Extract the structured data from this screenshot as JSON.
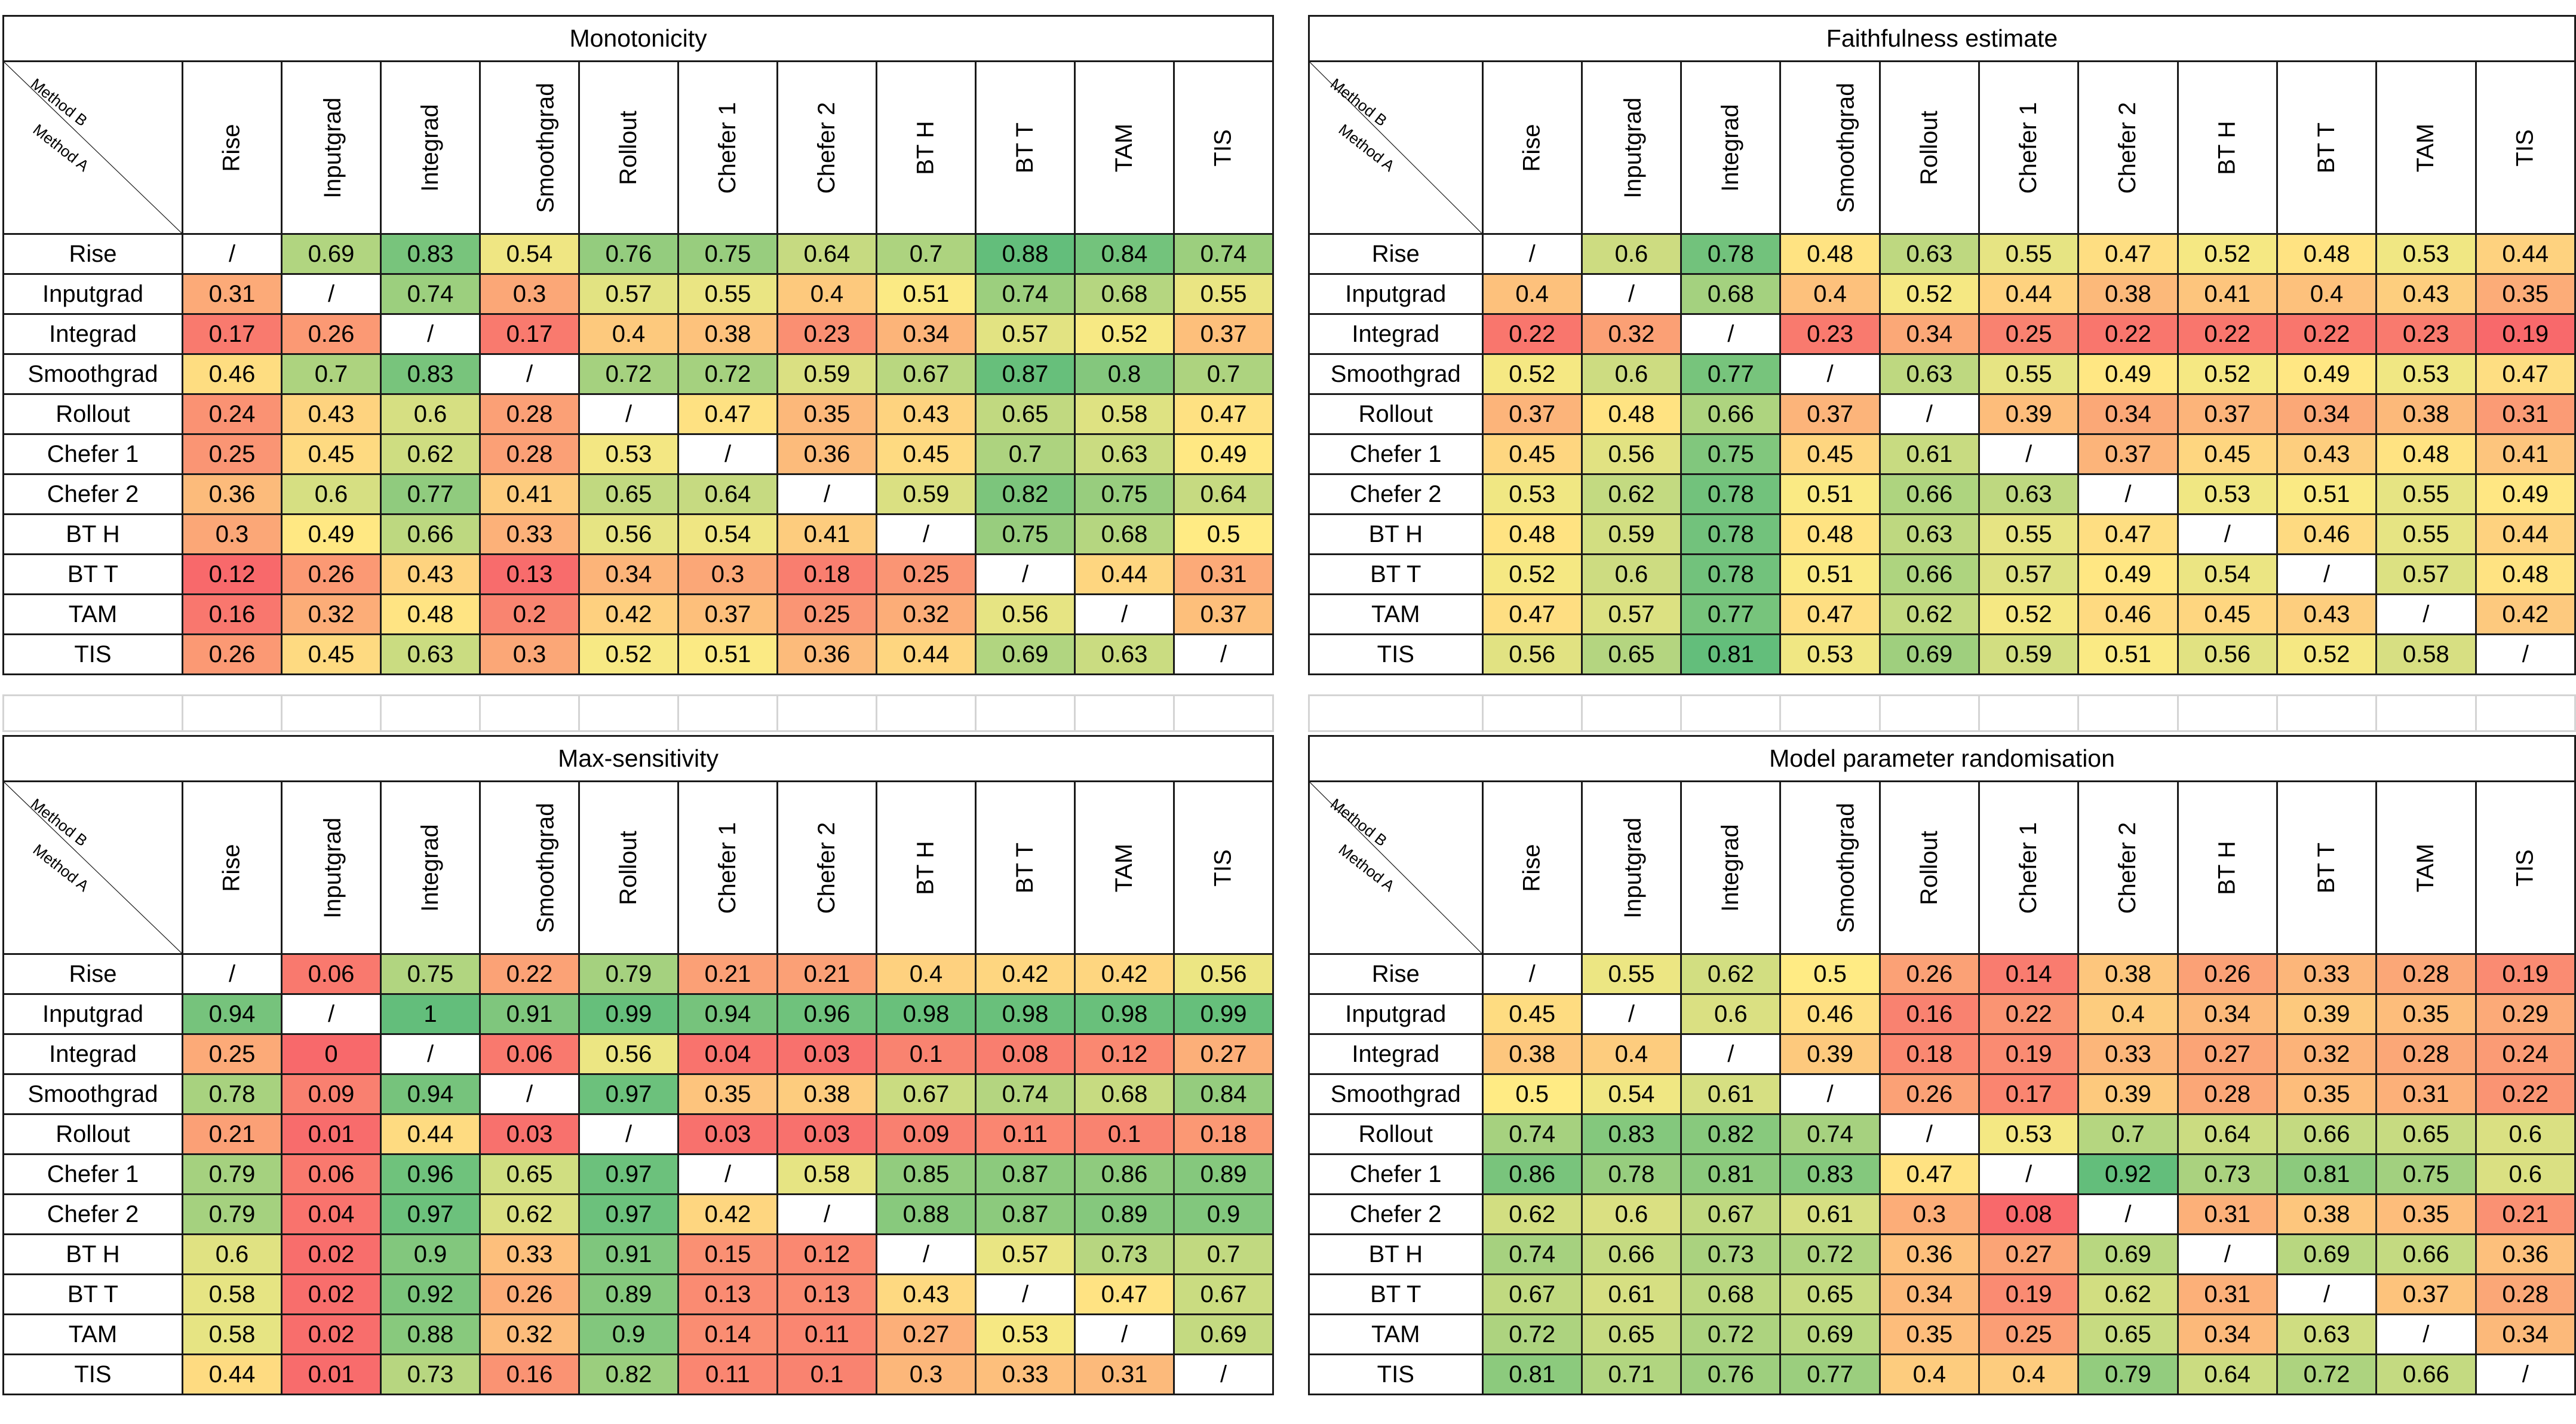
{
  "corner": {
    "method_b": "Method B",
    "method_a": "Method A"
  },
  "diag_symbol": "/",
  "labels": [
    "Rise",
    "Inputgrad",
    "Integrad",
    "Smoothgrad",
    "Rollout",
    "Chefer 1",
    "Chefer 2",
    "BT H",
    "BT T",
    "TAM",
    "TIS"
  ],
  "gap_cells": [
    "",
    "",
    "",
    "",
    "",
    "",
    "",
    "",
    "",
    "",
    "",
    ""
  ],
  "colors": {
    "low": "#f8696b",
    "mid": "#ffeb84",
    "high": "#63be7b",
    "diag_bg": "#ffffff"
  },
  "chart_data": [
    {
      "type": "heatmap",
      "title": "Monotonicity",
      "xlabel": "Method B",
      "ylabel": "Method A",
      "rows": [
        "Rise",
        "Inputgrad",
        "Integrad",
        "Smoothgrad",
        "Rollout",
        "Chefer 1",
        "Chefer 2",
        "BT H",
        "BT T",
        "TAM",
        "TIS"
      ],
      "columns": [
        "Rise",
        "Inputgrad",
        "Integrad",
        "Smoothgrad",
        "Rollout",
        "Chefer 1",
        "Chefer 2",
        "BT H",
        "BT T",
        "TAM",
        "TIS"
      ],
      "values": [
        [
          null,
          0.69,
          0.83,
          0.54,
          0.76,
          0.75,
          0.64,
          0.7,
          0.88,
          0.84,
          0.74
        ],
        [
          0.31,
          null,
          0.74,
          0.3,
          0.57,
          0.55,
          0.4,
          0.51,
          0.74,
          0.68,
          0.55
        ],
        [
          0.17,
          0.26,
          null,
          0.17,
          0.4,
          0.38,
          0.23,
          0.34,
          0.57,
          0.52,
          0.37
        ],
        [
          0.46,
          0.7,
          0.83,
          null,
          0.72,
          0.72,
          0.59,
          0.67,
          0.87,
          0.8,
          0.7
        ],
        [
          0.24,
          0.43,
          0.6,
          0.28,
          null,
          0.47,
          0.35,
          0.43,
          0.65,
          0.58,
          0.47
        ],
        [
          0.25,
          0.45,
          0.62,
          0.28,
          0.53,
          null,
          0.36,
          0.45,
          0.7,
          0.63,
          0.49
        ],
        [
          0.36,
          0.6,
          0.77,
          0.41,
          0.65,
          0.64,
          null,
          0.59,
          0.82,
          0.75,
          0.64
        ],
        [
          0.3,
          0.49,
          0.66,
          0.33,
          0.56,
          0.54,
          0.41,
          null,
          0.75,
          0.68,
          0.5
        ],
        [
          0.12,
          0.26,
          0.43,
          0.13,
          0.34,
          0.3,
          0.18,
          0.25,
          null,
          0.44,
          0.31
        ],
        [
          0.16,
          0.32,
          0.48,
          0.2,
          0.42,
          0.37,
          0.25,
          0.32,
          0.56,
          null,
          0.37
        ],
        [
          0.26,
          0.45,
          0.63,
          0.3,
          0.52,
          0.51,
          0.36,
          0.44,
          0.69,
          0.63,
          null
        ]
      ]
    },
    {
      "type": "heatmap",
      "title": "Faithfulness estimate",
      "xlabel": "Method B",
      "ylabel": "Method A",
      "rows": [
        "Rise",
        "Inputgrad",
        "Integrad",
        "Smoothgrad",
        "Rollout",
        "Chefer 1",
        "Chefer 2",
        "BT H",
        "BT T",
        "TAM",
        "TIS"
      ],
      "columns": [
        "Rise",
        "Inputgrad",
        "Integrad",
        "Smoothgrad",
        "Rollout",
        "Chefer 1",
        "Chefer 2",
        "BT H",
        "BT T",
        "TAM",
        "TIS"
      ],
      "values": [
        [
          null,
          0.6,
          0.78,
          0.48,
          0.63,
          0.55,
          0.47,
          0.52,
          0.48,
          0.53,
          0.44
        ],
        [
          0.4,
          null,
          0.68,
          0.4,
          0.52,
          0.44,
          0.38,
          0.41,
          0.4,
          0.43,
          0.35
        ],
        [
          0.22,
          0.32,
          null,
          0.23,
          0.34,
          0.25,
          0.22,
          0.22,
          0.22,
          0.23,
          0.19
        ],
        [
          0.52,
          0.6,
          0.77,
          null,
          0.63,
          0.55,
          0.49,
          0.52,
          0.49,
          0.53,
          0.47
        ],
        [
          0.37,
          0.48,
          0.66,
          0.37,
          null,
          0.39,
          0.34,
          0.37,
          0.34,
          0.38,
          0.31
        ],
        [
          0.45,
          0.56,
          0.75,
          0.45,
          0.61,
          null,
          0.37,
          0.45,
          0.43,
          0.48,
          0.41
        ],
        [
          0.53,
          0.62,
          0.78,
          0.51,
          0.66,
          0.63,
          null,
          0.53,
          0.51,
          0.55,
          0.49
        ],
        [
          0.48,
          0.59,
          0.78,
          0.48,
          0.63,
          0.55,
          0.47,
          null,
          0.46,
          0.55,
          0.44
        ],
        [
          0.52,
          0.6,
          0.78,
          0.51,
          0.66,
          0.57,
          0.49,
          0.54,
          null,
          0.57,
          0.48
        ],
        [
          0.47,
          0.57,
          0.77,
          0.47,
          0.62,
          0.52,
          0.46,
          0.45,
          0.43,
          null,
          0.42
        ],
        [
          0.56,
          0.65,
          0.81,
          0.53,
          0.69,
          0.59,
          0.51,
          0.56,
          0.52,
          0.58,
          null
        ]
      ]
    },
    {
      "type": "heatmap",
      "title": "Max-sensitivity",
      "xlabel": "Method B",
      "ylabel": "Method A",
      "rows": [
        "Rise",
        "Inputgrad",
        "Integrad",
        "Smoothgrad",
        "Rollout",
        "Chefer 1",
        "Chefer 2",
        "BT H",
        "BT T",
        "TAM",
        "TIS"
      ],
      "columns": [
        "Rise",
        "Inputgrad",
        "Integrad",
        "Smoothgrad",
        "Rollout",
        "Chefer 1",
        "Chefer 2",
        "BT H",
        "BT T",
        "TAM",
        "TIS"
      ],
      "values": [
        [
          null,
          0.06,
          0.75,
          0.22,
          0.79,
          0.21,
          0.21,
          0.4,
          0.42,
          0.42,
          0.56
        ],
        [
          0.94,
          null,
          1,
          0.91,
          0.99,
          0.94,
          0.96,
          0.98,
          0.98,
          0.98,
          0.99
        ],
        [
          0.25,
          0,
          null,
          0.06,
          0.56,
          0.04,
          0.03,
          0.1,
          0.08,
          0.12,
          0.27
        ],
        [
          0.78,
          0.09,
          0.94,
          null,
          0.97,
          0.35,
          0.38,
          0.67,
          0.74,
          0.68,
          0.84
        ],
        [
          0.21,
          0.01,
          0.44,
          0.03,
          null,
          0.03,
          0.03,
          0.09,
          0.11,
          0.1,
          0.18
        ],
        [
          0.79,
          0.06,
          0.96,
          0.65,
          0.97,
          null,
          0.58,
          0.85,
          0.87,
          0.86,
          0.89
        ],
        [
          0.79,
          0.04,
          0.97,
          0.62,
          0.97,
          0.42,
          null,
          0.88,
          0.87,
          0.89,
          0.9
        ],
        [
          0.6,
          0.02,
          0.9,
          0.33,
          0.91,
          0.15,
          0.12,
          null,
          0.57,
          0.73,
          0.7
        ],
        [
          0.58,
          0.02,
          0.92,
          0.26,
          0.89,
          0.13,
          0.13,
          0.43,
          null,
          0.47,
          0.67
        ],
        [
          0.58,
          0.02,
          0.88,
          0.32,
          0.9,
          0.14,
          0.11,
          0.27,
          0.53,
          null,
          0.69
        ],
        [
          0.44,
          0.01,
          0.73,
          0.16,
          0.82,
          0.11,
          0.1,
          0.3,
          0.33,
          0.31,
          null
        ]
      ]
    },
    {
      "type": "heatmap",
      "title": "Model parameter randomisation",
      "xlabel": "Method B",
      "ylabel": "Method A",
      "rows": [
        "Rise",
        "Inputgrad",
        "Integrad",
        "Smoothgrad",
        "Rollout",
        "Chefer 1",
        "Chefer 2",
        "BT H",
        "BT T",
        "TAM",
        "TIS"
      ],
      "columns": [
        "Rise",
        "Inputgrad",
        "Integrad",
        "Smoothgrad",
        "Rollout",
        "Chefer 1",
        "Chefer 2",
        "BT H",
        "BT T",
        "TAM",
        "TIS"
      ],
      "values": [
        [
          null,
          0.55,
          0.62,
          0.5,
          0.26,
          0.14,
          0.38,
          0.26,
          0.33,
          0.28,
          0.19
        ],
        [
          0.45,
          null,
          0.6,
          0.46,
          0.16,
          0.22,
          0.4,
          0.34,
          0.39,
          0.35,
          0.29
        ],
        [
          0.38,
          0.4,
          null,
          0.39,
          0.18,
          0.19,
          0.33,
          0.27,
          0.32,
          0.28,
          0.24
        ],
        [
          0.5,
          0.54,
          0.61,
          null,
          0.26,
          0.17,
          0.39,
          0.28,
          0.35,
          0.31,
          0.22
        ],
        [
          0.74,
          0.83,
          0.82,
          0.74,
          null,
          0.53,
          0.7,
          0.64,
          0.66,
          0.65,
          0.6
        ],
        [
          0.86,
          0.78,
          0.81,
          0.83,
          0.47,
          null,
          0.92,
          0.73,
          0.81,
          0.75,
          0.6
        ],
        [
          0.62,
          0.6,
          0.67,
          0.61,
          0.3,
          0.08,
          null,
          0.31,
          0.38,
          0.35,
          0.21
        ],
        [
          0.74,
          0.66,
          0.73,
          0.72,
          0.36,
          0.27,
          0.69,
          null,
          0.69,
          0.66,
          0.36
        ],
        [
          0.67,
          0.61,
          0.68,
          0.65,
          0.34,
          0.19,
          0.62,
          0.31,
          null,
          0.37,
          0.28
        ],
        [
          0.72,
          0.65,
          0.72,
          0.69,
          0.35,
          0.25,
          0.65,
          0.34,
          0.63,
          null,
          0.34
        ],
        [
          0.81,
          0.71,
          0.76,
          0.77,
          0.4,
          0.4,
          0.79,
          0.64,
          0.72,
          0.66,
          null
        ]
      ]
    }
  ]
}
